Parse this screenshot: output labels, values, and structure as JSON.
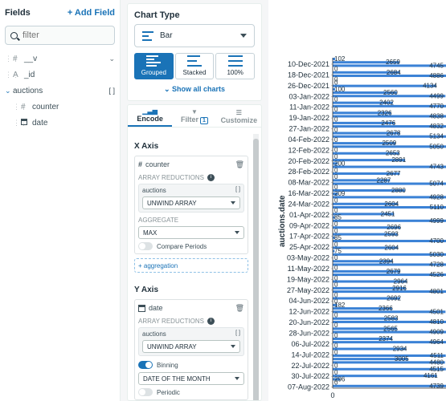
{
  "fields_panel": {
    "title": "Fields",
    "add_field_label": "Add Field",
    "search_placeholder": "filter",
    "fields": [
      {
        "type_icon": "#",
        "name": "__v"
      },
      {
        "type_icon": "A",
        "name": "_id"
      }
    ],
    "array_field": {
      "name": "auctions"
    },
    "sub_fields": [
      {
        "type_icon": "#",
        "name": "counter"
      },
      {
        "type_icon": "date-icon",
        "name": "date"
      }
    ]
  },
  "chart_type": {
    "title": "Chart Type",
    "selected": "Bar",
    "variants": [
      "Grouped",
      "Stacked",
      "100%"
    ],
    "active_variant": "Grouped",
    "show_all_label": "Show all charts"
  },
  "encode_tabs": {
    "encode": "Encode",
    "filter": "Filter",
    "filter_count": "1",
    "customize": "Customize"
  },
  "x_axis": {
    "title": "X Axis",
    "field": "counter",
    "array_reductions_label": "ARRAY REDUCTIONS",
    "reduction_field": "auctions",
    "reduction_value": "UNWIND ARRAY",
    "aggregate_label": "AGGREGATE",
    "aggregate_value": "MAX",
    "compare_periods_label": "Compare Periods",
    "add_aggregation_label": "+ aggregation"
  },
  "y_axis": {
    "title": "Y Axis",
    "field": "date",
    "array_reductions_label": "ARRAY REDUCTIONS",
    "reduction_field": "auctions",
    "reduction_value": "UNWIND ARRAY",
    "binning_label": "Binning",
    "binning_value": "DATE OF THE MONTH",
    "periodic_label": "Periodic"
  },
  "colors": {
    "accent": "#1a73b7",
    "bar": "#3b82d6",
    "text": "#3d4f58"
  },
  "chart_data": {
    "type": "bar",
    "orientation": "horizontal",
    "ylabel": "auctions.date",
    "categories": [
      "10-Dec-2021",
      "18-Dec-2021",
      "26-Dec-2021",
      "03-Jan-2022",
      "11-Jan-2022",
      "19-Jan-2022",
      "27-Jan-2022",
      "04-Feb-2022",
      "12-Feb-2022",
      "20-Feb-2022",
      "28-Feb-2022",
      "08-Mar-2022",
      "16-Mar-2022",
      "24-Mar-2022",
      "01-Apr-2022",
      "09-Apr-2022",
      "17-Apr-2022",
      "25-Apr-2022",
      "03-May-2022",
      "11-May-2022",
      "19-May-2022",
      "27-May-2022",
      "04-Jun-2022",
      "12-Jun-2022",
      "20-Jun-2022",
      "28-Jun-2022",
      "06-Jul-2022",
      "14-Jul-2022",
      "22-Jul-2022",
      "30-Jul-2022",
      "07-Aug-2022"
    ],
    "xlim": [
      0,
      5200
    ],
    "bars": [
      {
        "label": "102",
        "value": 102
      },
      {
        "label": "2659",
        "value": 2659
      },
      {
        "label": "4745",
        "value": 4745
      },
      {
        "label": "0",
        "value": 0
      },
      {
        "label": "2684",
        "value": 2684
      },
      {
        "label": "4886",
        "value": 4886
      },
      {
        "label": "0",
        "value": 0
      },
      {
        "label": "0",
        "value": 0
      },
      {
        "label": "4134",
        "value": 4134
      },
      {
        "label": "100",
        "value": 100
      },
      {
        "label": "2560",
        "value": 2560
      },
      {
        "label": "4499",
        "value": 4499
      },
      {
        "label": "0",
        "value": 0
      },
      {
        "label": "2402",
        "value": 2402
      },
      {
        "label": "4770",
        "value": 4770
      },
      {
        "label": "0",
        "value": 0
      },
      {
        "label": "2326",
        "value": 2326
      },
      {
        "label": "4838",
        "value": 4838
      },
      {
        "label": "0",
        "value": 0
      },
      {
        "label": "2476",
        "value": 2476
      },
      {
        "label": "4832",
        "value": 4832
      },
      {
        "label": "0",
        "value": 0
      },
      {
        "label": "2678",
        "value": 2678
      },
      {
        "label": "5134",
        "value": 5134
      },
      {
        "label": "0",
        "value": 0
      },
      {
        "label": "2509",
        "value": 2509
      },
      {
        "label": "5050",
        "value": 5050
      },
      {
        "label": "0",
        "value": 0
      },
      {
        "label": "2653",
        "value": 2653
      },
      {
        "label": "0",
        "value": 0
      },
      {
        "label": "2891",
        "value": 2891
      },
      {
        "label": "200",
        "value": 200
      },
      {
        "label": "4743",
        "value": 4743
      },
      {
        "label": "0",
        "value": 0
      },
      {
        "label": "2677",
        "value": 2677
      },
      {
        "label": "0",
        "value": 0
      },
      {
        "label": "2287",
        "value": 2287
      },
      {
        "label": "5074",
        "value": 5074
      },
      {
        "label": "0",
        "value": 0
      },
      {
        "label": "2880",
        "value": 2880
      },
      {
        "label": "209",
        "value": 209
      },
      {
        "label": "4928",
        "value": 4928
      },
      {
        "label": "0",
        "value": 0
      },
      {
        "label": "2604",
        "value": 2604
      },
      {
        "label": "5110",
        "value": 5110
      },
      {
        "label": "0",
        "value": 0
      },
      {
        "label": "2451",
        "value": 2451
      },
      {
        "label": "85",
        "value": 85
      },
      {
        "label": "4999",
        "value": 4999
      },
      {
        "label": "0",
        "value": 0
      },
      {
        "label": "2696",
        "value": 2696
      },
      {
        "label": "0",
        "value": 0
      },
      {
        "label": "2593",
        "value": 2593
      },
      {
        "label": "85",
        "value": 85
      },
      {
        "label": "4700",
        "value": 4700
      },
      {
        "label": "0",
        "value": 0
      },
      {
        "label": "2604",
        "value": 2604
      },
      {
        "label": "75",
        "value": 75
      },
      {
        "label": "5030",
        "value": 5030
      },
      {
        "label": "0",
        "value": 0
      },
      {
        "label": "2394",
        "value": 2394
      },
      {
        "label": "4728",
        "value": 4728
      },
      {
        "label": "0",
        "value": 0
      },
      {
        "label": "2679",
        "value": 2679
      },
      {
        "label": "4526",
        "value": 4526
      },
      {
        "label": "0",
        "value": 0
      },
      {
        "label": "2964",
        "value": 2964
      },
      {
        "label": "0",
        "value": 0
      },
      {
        "label": "2916",
        "value": 2916
      },
      {
        "label": "4801",
        "value": 4801
      },
      {
        "label": "0",
        "value": 0
      },
      {
        "label": "2692",
        "value": 2692
      },
      {
        "label": "0",
        "value": 0
      },
      {
        "label": "182",
        "value": 182
      },
      {
        "label": "2366",
        "value": 2366
      },
      {
        "label": "4501",
        "value": 4501
      },
      {
        "label": "0",
        "value": 0
      },
      {
        "label": "2583",
        "value": 2583
      },
      {
        "label": "4810",
        "value": 4810
      },
      {
        "label": "0",
        "value": 0
      },
      {
        "label": "2565",
        "value": 2565
      },
      {
        "label": "4909",
        "value": 4909
      },
      {
        "label": "0",
        "value": 0
      },
      {
        "label": "2374",
        "value": 2374
      },
      {
        "label": "4964",
        "value": 4964
      },
      {
        "label": "0",
        "value": 0
      },
      {
        "label": "2934",
        "value": 2934
      },
      {
        "label": "0",
        "value": 0
      },
      {
        "label": "4511",
        "value": 4511
      },
      {
        "label": "3005",
        "value": 3005
      },
      {
        "label": "4480",
        "value": 4480
      },
      {
        "label": "0",
        "value": 0
      },
      {
        "label": "4515",
        "value": 4515
      },
      {
        "label": "0",
        "value": 0
      },
      {
        "label": "4161",
        "value": 4161
      },
      {
        "label": "296",
        "value": 296
      },
      {
        "label": "0",
        "value": 0
      },
      {
        "label": "4739",
        "value": 4739
      }
    ],
    "tick_labels": [
      "0",
      "5000"
    ]
  }
}
